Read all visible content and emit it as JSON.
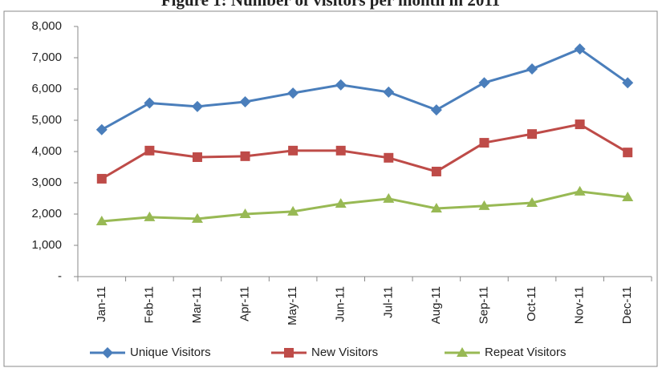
{
  "chart_data": {
    "type": "line",
    "title": "Figure 1: Number of visitors per month in 2011",
    "categories": [
      "Jan-11",
      "Feb-11",
      "Mar-11",
      "Apr-11",
      "May-11",
      "Jun-11",
      "Jul-11",
      "Aug-11",
      "Sep-11",
      "Oct-11",
      "Nov-11",
      "Dec-11"
    ],
    "series": [
      {
        "name": "Unique Visitors",
        "color": "#4a7ebb",
        "marker": "diamond",
        "values": [
          4700,
          5550,
          5440,
          5590,
          5870,
          6130,
          5900,
          5330,
          6200,
          6640,
          7280,
          6200
        ]
      },
      {
        "name": "New Visitors",
        "color": "#be4b48",
        "marker": "square",
        "values": [
          3130,
          4030,
          3820,
          3850,
          4030,
          4030,
          3800,
          3360,
          4280,
          4560,
          4870,
          3970
        ]
      },
      {
        "name": "Repeat Visitors",
        "color": "#98b954",
        "marker": "triangle",
        "values": [
          1770,
          1900,
          1850,
          2000,
          2080,
          2330,
          2490,
          2180,
          2260,
          2360,
          2720,
          2540
        ]
      }
    ],
    "ylim": [
      0,
      8000
    ],
    "yticks": [
      {
        "value": 0,
        "label": "-"
      },
      {
        "value": 1000,
        "label": "1,000"
      },
      {
        "value": 2000,
        "label": "2,000"
      },
      {
        "value": 3000,
        "label": "3,000"
      },
      {
        "value": 4000,
        "label": "4,000"
      },
      {
        "value": 5000,
        "label": "5,000"
      },
      {
        "value": 6000,
        "label": "6,000"
      },
      {
        "value": 7000,
        "label": "7,000"
      },
      {
        "value": 8000,
        "label": "8,000"
      }
    ],
    "grid": false,
    "legend": "bottom"
  }
}
